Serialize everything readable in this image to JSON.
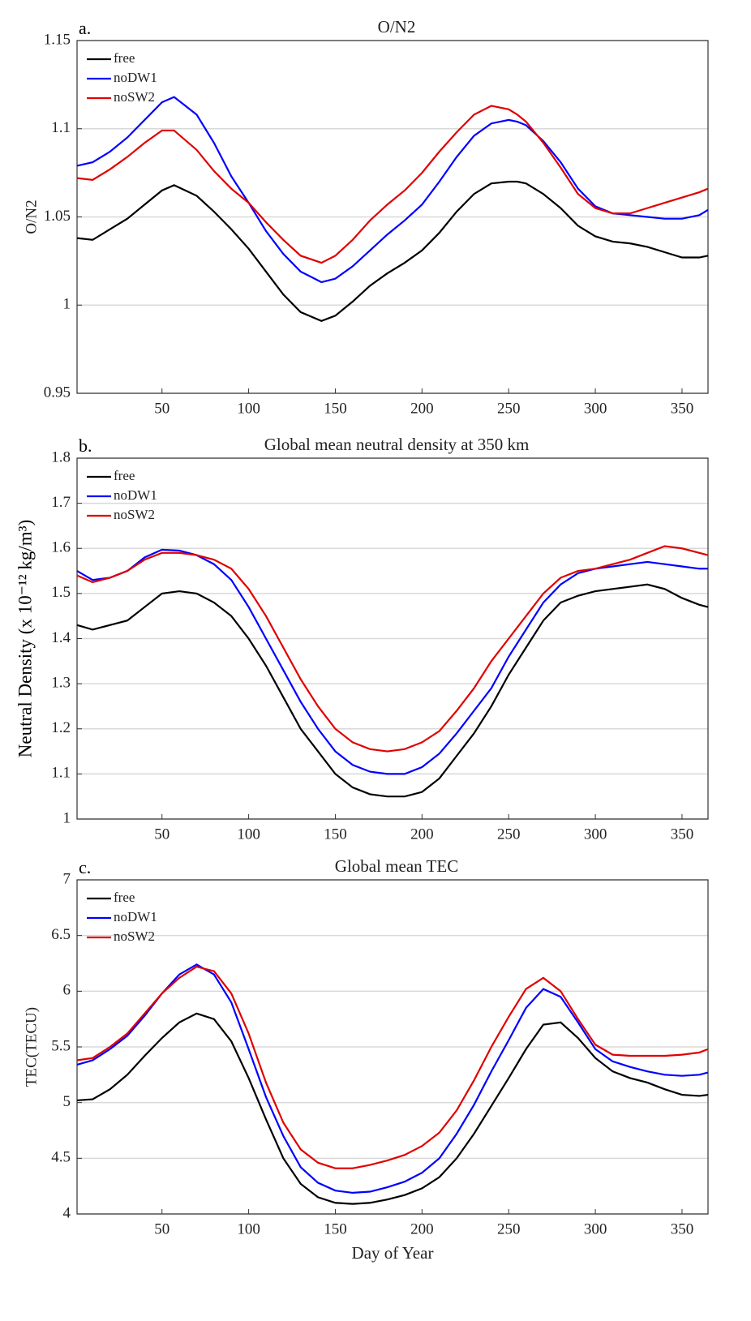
{
  "chart_data": [
    {
      "type": "line",
      "panel_label": "a.",
      "title": "O/N2",
      "ylabel": "O/N2",
      "x": [
        1,
        10,
        20,
        30,
        40,
        50,
        57,
        70,
        80,
        90,
        100,
        110,
        120,
        130,
        142,
        150,
        160,
        170,
        180,
        190,
        200,
        210,
        220,
        230,
        240,
        250,
        255,
        260,
        270,
        280,
        290,
        300,
        310,
        320,
        330,
        340,
        350,
        360,
        365
      ],
      "series": [
        {
          "name": "free",
          "color": "#000000",
          "values": [
            1.038,
            1.037,
            1.043,
            1.049,
            1.057,
            1.065,
            1.068,
            1.062,
            1.053,
            1.043,
            1.032,
            1.019,
            1.006,
            0.996,
            0.991,
            0.994,
            1.002,
            1.011,
            1.018,
            1.024,
            1.031,
            1.041,
            1.053,
            1.063,
            1.069,
            1.07,
            1.07,
            1.069,
            1.063,
            1.055,
            1.045,
            1.039,
            1.036,
            1.035,
            1.033,
            1.03,
            1.027,
            1.027,
            1.028
          ]
        },
        {
          "name": "noDW1",
          "color": "#0000ff",
          "values": [
            1.079,
            1.081,
            1.087,
            1.095,
            1.105,
            1.115,
            1.118,
            1.108,
            1.092,
            1.073,
            1.058,
            1.042,
            1.029,
            1.019,
            1.013,
            1.015,
            1.022,
            1.031,
            1.04,
            1.048,
            1.057,
            1.07,
            1.084,
            1.096,
            1.103,
            1.105,
            1.104,
            1.102,
            1.093,
            1.081,
            1.066,
            1.056,
            1.052,
            1.051,
            1.05,
            1.049,
            1.049,
            1.051,
            1.054
          ]
        },
        {
          "name": "noSW2",
          "color": "#e00000",
          "values": [
            1.072,
            1.071,
            1.077,
            1.084,
            1.092,
            1.099,
            1.099,
            1.088,
            1.076,
            1.066,
            1.058,
            1.047,
            1.037,
            1.028,
            1.024,
            1.028,
            1.037,
            1.048,
            1.057,
            1.065,
            1.075,
            1.087,
            1.098,
            1.108,
            1.113,
            1.111,
            1.108,
            1.104,
            1.092,
            1.078,
            1.063,
            1.055,
            1.052,
            1.052,
            1.055,
            1.058,
            1.061,
            1.064,
            1.066
          ]
        }
      ],
      "xlim": [
        1,
        365
      ],
      "xticks": [
        50,
        100,
        150,
        200,
        250,
        300,
        350
      ],
      "ylim": [
        0.95,
        1.15
      ],
      "yticks": [
        0.95,
        1,
        1.05,
        1.1,
        1.15
      ],
      "grid": true,
      "legend": "upper-left"
    },
    {
      "type": "line",
      "panel_label": "b.",
      "title": "Global mean neutral density at 350 km",
      "ylabel": "Neutral Density (x 10⁻¹² kg/m³)",
      "x": [
        1,
        10,
        20,
        30,
        40,
        50,
        60,
        70,
        80,
        90,
        100,
        110,
        120,
        130,
        140,
        150,
        160,
        170,
        180,
        190,
        200,
        210,
        220,
        230,
        240,
        250,
        260,
        270,
        280,
        290,
        300,
        310,
        320,
        330,
        340,
        350,
        360,
        365
      ],
      "series": [
        {
          "name": "free",
          "color": "#000000",
          "values": [
            1.43,
            1.42,
            1.43,
            1.44,
            1.47,
            1.5,
            1.505,
            1.5,
            1.48,
            1.45,
            1.4,
            1.34,
            1.27,
            1.2,
            1.15,
            1.1,
            1.07,
            1.055,
            1.05,
            1.05,
            1.06,
            1.09,
            1.14,
            1.19,
            1.25,
            1.32,
            1.38,
            1.44,
            1.48,
            1.495,
            1.505,
            1.51,
            1.515,
            1.52,
            1.51,
            1.49,
            1.475,
            1.47
          ]
        },
        {
          "name": "noDW1",
          "color": "#0000ff",
          "values": [
            1.55,
            1.53,
            1.535,
            1.55,
            1.58,
            1.597,
            1.595,
            1.585,
            1.565,
            1.53,
            1.47,
            1.4,
            1.33,
            1.26,
            1.2,
            1.15,
            1.12,
            1.105,
            1.1,
            1.1,
            1.115,
            1.145,
            1.19,
            1.24,
            1.29,
            1.36,
            1.42,
            1.48,
            1.52,
            1.545,
            1.555,
            1.56,
            1.565,
            1.57,
            1.565,
            1.56,
            1.555,
            1.555
          ]
        },
        {
          "name": "noSW2",
          "color": "#e00000",
          "values": [
            1.54,
            1.525,
            1.535,
            1.55,
            1.575,
            1.59,
            1.59,
            1.585,
            1.575,
            1.555,
            1.51,
            1.45,
            1.38,
            1.31,
            1.25,
            1.2,
            1.17,
            1.155,
            1.15,
            1.155,
            1.17,
            1.195,
            1.24,
            1.29,
            1.35,
            1.4,
            1.45,
            1.5,
            1.535,
            1.55,
            1.555,
            1.565,
            1.575,
            1.59,
            1.605,
            1.6,
            1.59,
            1.585
          ]
        }
      ],
      "xlim": [
        1,
        365
      ],
      "xticks": [
        50,
        100,
        150,
        200,
        250,
        300,
        350
      ],
      "ylim": [
        1,
        1.8
      ],
      "yticks": [
        1,
        1.1,
        1.2,
        1.3,
        1.4,
        1.5,
        1.6,
        1.7,
        1.8
      ],
      "grid": true,
      "legend": "upper-left"
    },
    {
      "type": "line",
      "panel_label": "c.",
      "title": "Global mean TEC",
      "ylabel": "TEC(TECU)",
      "xlabel": "Day of Year",
      "x": [
        1,
        10,
        20,
        30,
        40,
        50,
        60,
        70,
        80,
        90,
        100,
        110,
        120,
        130,
        140,
        150,
        160,
        170,
        180,
        190,
        200,
        210,
        220,
        230,
        240,
        250,
        260,
        270,
        280,
        290,
        300,
        310,
        320,
        330,
        340,
        350,
        360,
        365
      ],
      "series": [
        {
          "name": "free",
          "color": "#000000",
          "values": [
            5.02,
            5.03,
            5.12,
            5.25,
            5.42,
            5.58,
            5.72,
            5.8,
            5.75,
            5.55,
            5.22,
            4.85,
            4.5,
            4.27,
            4.15,
            4.1,
            4.09,
            4.1,
            4.13,
            4.17,
            4.23,
            4.33,
            4.5,
            4.72,
            4.97,
            5.22,
            5.48,
            5.7,
            5.72,
            5.58,
            5.4,
            5.28,
            5.22,
            5.18,
            5.12,
            5.07,
            5.06,
            5.07
          ]
        },
        {
          "name": "noDW1",
          "color": "#0000ff",
          "values": [
            5.34,
            5.38,
            5.48,
            5.6,
            5.78,
            5.98,
            6.15,
            6.24,
            6.15,
            5.9,
            5.48,
            5.05,
            4.7,
            4.42,
            4.28,
            4.21,
            4.19,
            4.2,
            4.24,
            4.29,
            4.37,
            4.5,
            4.72,
            4.98,
            5.28,
            5.56,
            5.85,
            6.02,
            5.95,
            5.72,
            5.48,
            5.37,
            5.32,
            5.28,
            5.25,
            5.24,
            5.25,
            5.27
          ]
        },
        {
          "name": "noSW2",
          "color": "#e00000",
          "values": [
            5.38,
            5.4,
            5.5,
            5.62,
            5.8,
            5.98,
            6.12,
            6.22,
            6.18,
            5.98,
            5.62,
            5.18,
            4.82,
            4.58,
            4.46,
            4.41,
            4.41,
            4.44,
            4.48,
            4.53,
            4.61,
            4.73,
            4.93,
            5.2,
            5.5,
            5.77,
            6.02,
            6.12,
            6.0,
            5.75,
            5.52,
            5.43,
            5.42,
            5.42,
            5.42,
            5.43,
            5.45,
            5.48
          ]
        }
      ],
      "xlim": [
        1,
        365
      ],
      "xticks": [
        50,
        100,
        150,
        200,
        250,
        300,
        350
      ],
      "ylim": [
        4,
        7
      ],
      "yticks": [
        4,
        4.5,
        5,
        5.5,
        6,
        6.5,
        7
      ],
      "grid": true,
      "legend": "upper-left"
    }
  ]
}
